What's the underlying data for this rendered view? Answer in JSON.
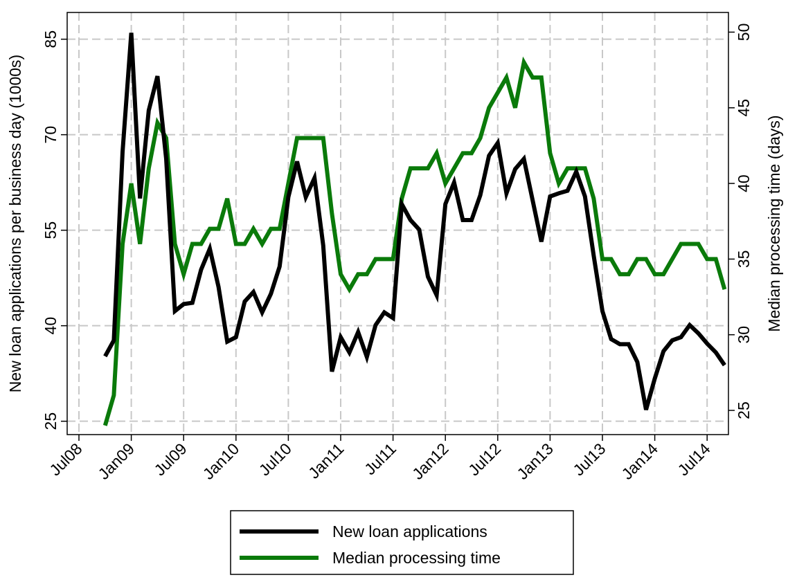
{
  "chart_data": {
    "type": "line",
    "x": [
      "2008-10",
      "2008-11",
      "2008-12",
      "2009-01",
      "2009-02",
      "2009-03",
      "2009-04",
      "2009-05",
      "2009-06",
      "2009-07",
      "2009-08",
      "2009-09",
      "2009-10",
      "2009-11",
      "2009-12",
      "2010-01",
      "2010-02",
      "2010-03",
      "2010-04",
      "2010-05",
      "2010-06",
      "2010-07",
      "2010-08",
      "2010-09",
      "2010-10",
      "2010-11",
      "2010-12",
      "2011-01",
      "2011-02",
      "2011-03",
      "2011-04",
      "2011-05",
      "2011-06",
      "2011-07",
      "2011-08",
      "2011-09",
      "2011-10",
      "2011-11",
      "2011-12",
      "2012-01",
      "2012-02",
      "2012-03",
      "2012-04",
      "2012-05",
      "2012-06",
      "2012-07",
      "2012-08",
      "2012-09",
      "2012-10",
      "2012-11",
      "2012-12",
      "2013-01",
      "2013-02",
      "2013-03",
      "2013-04",
      "2013-05",
      "2013-06",
      "2013-07",
      "2013-08",
      "2013-09",
      "2013-10",
      "2013-11",
      "2013-12",
      "2014-01",
      "2014-02",
      "2014-03",
      "2014-04",
      "2014-05",
      "2014-06",
      "2014-07",
      "2014-08",
      "2014-09"
    ],
    "series": [
      {
        "name": "New loan applications",
        "color": "#000000",
        "values": [
          35.2,
          37.7,
          67.3,
          86,
          60,
          73.8,
          79.2,
          66.2,
          42.3,
          43.4,
          43.6,
          48.8,
          52.1,
          46.1,
          37.5,
          38.2,
          43.8,
          45.3,
          42.1,
          45,
          49.3,
          60.2,
          65.8,
          60.2,
          63.2,
          52.6,
          32.8,
          38.2,
          35.8,
          39,
          35.1,
          40.1,
          42.1,
          41.2,
          59.1,
          56.6,
          55.1,
          47.7,
          44.8,
          59.1,
          62.5,
          56.6,
          56.6,
          60.5,
          66.7,
          68.7,
          60.8,
          64.6,
          66.2,
          59.7,
          53.2,
          60.3,
          60.8,
          61.2,
          64.2,
          60.3,
          51,
          42.3,
          37.9,
          37.1,
          37.1,
          34.3,
          26.8,
          31.7,
          36,
          37.7,
          38.2,
          40.1,
          38.8,
          37.2,
          35.8,
          33.8
        ]
      },
      {
        "name": "Median processing time",
        "color": "#0a7a0a",
        "axis": "y2",
        "values": [
          24,
          26,
          36,
          40,
          36,
          41,
          44,
          43,
          36,
          34,
          36,
          36,
          37,
          37,
          39,
          36,
          36,
          37,
          36,
          37,
          37,
          40,
          43,
          43,
          43,
          43,
          38,
          34,
          33,
          34,
          34,
          35,
          35,
          35,
          39,
          41,
          41,
          41,
          42,
          40,
          41,
          42,
          42,
          43,
          45,
          46,
          47,
          45,
          48,
          47,
          47,
          42,
          40,
          41,
          41,
          41,
          39,
          35,
          35,
          34,
          34,
          35,
          35,
          34,
          34,
          35,
          36,
          36,
          36,
          35,
          35,
          33
        ]
      }
    ],
    "xticks": [
      {
        "value": "2008-07",
        "label": "Jul08"
      },
      {
        "value": "2009-01",
        "label": "Jan09"
      },
      {
        "value": "2009-07",
        "label": "Jul09"
      },
      {
        "value": "2010-01",
        "label": "Jan10"
      },
      {
        "value": "2010-07",
        "label": "Jul10"
      },
      {
        "value": "2011-01",
        "label": "Jan11"
      },
      {
        "value": "2011-07",
        "label": "Jul11"
      },
      {
        "value": "2012-01",
        "label": "Jan12"
      },
      {
        "value": "2012-07",
        "label": "Jul12"
      },
      {
        "value": "2013-01",
        "label": "Jan13"
      },
      {
        "value": "2013-07",
        "label": "Jul13"
      },
      {
        "value": "2014-01",
        "label": "Jan14"
      },
      {
        "value": "2014-07",
        "label": "Jul14"
      }
    ],
    "ylabel": "New loan applications per business day (1000s)",
    "y2label": "Median processing time (days)",
    "ylim": [
      22.9,
      89.2
    ],
    "yticks": [
      25,
      40,
      55,
      70,
      85
    ],
    "y2lim": [
      23.4,
      51.3
    ],
    "y2ticks": [
      25,
      30,
      35,
      40,
      45,
      50
    ],
    "grid": true,
    "legend": "bottom"
  }
}
